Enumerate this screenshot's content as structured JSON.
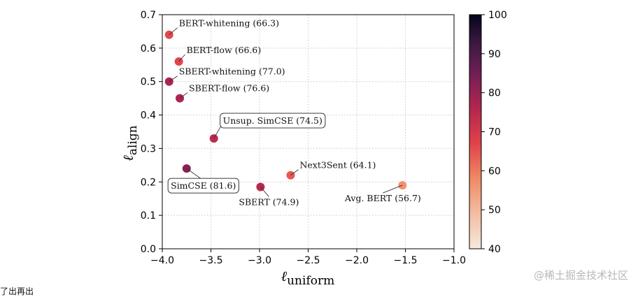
{
  "chart_data": {
    "type": "scatter",
    "xlabel": "ℓ",
    "xlabel_sub": "uniform",
    "ylabel": "ℓ",
    "ylabel_sub": "align",
    "xlim": [
      -4.0,
      -1.0
    ],
    "ylim": [
      0.0,
      0.7
    ],
    "x_ticks": [
      -4.0,
      -3.5,
      -3.0,
      -2.5,
      -2.0,
      -1.5,
      -1.0
    ],
    "x_tick_labels": [
      "−4.0",
      "−3.5",
      "−3.0",
      "−2.5",
      "−2.0",
      "−1.5",
      "−1.0"
    ],
    "y_ticks": [
      0.0,
      0.1,
      0.2,
      0.3,
      0.4,
      0.5,
      0.6,
      0.7
    ],
    "y_tick_labels": [
      "0.0",
      "0.1",
      "0.2",
      "0.3",
      "0.4",
      "0.5",
      "0.6",
      "0.7"
    ],
    "grid": true,
    "colorbar": {
      "min": 40,
      "max": 100,
      "ticks": [
        40,
        50,
        60,
        70,
        80,
        90,
        100
      ],
      "tick_labels": [
        "40",
        "50",
        "60",
        "70",
        "80",
        "90",
        "100"
      ],
      "colormap": "rocket_r"
    },
    "points": [
      {
        "label": "BERT-whitening (66.3)",
        "x": -3.93,
        "y": 0.64,
        "value": 66.3,
        "boxed": false
      },
      {
        "label": "BERT-flow (66.6)",
        "x": -3.83,
        "y": 0.56,
        "value": 66.6,
        "boxed": false
      },
      {
        "label": "SBERT-whitening (77.0)",
        "x": -3.93,
        "y": 0.5,
        "value": 77.0,
        "boxed": false
      },
      {
        "label": "SBERT-flow (76.6)",
        "x": -3.82,
        "y": 0.45,
        "value": 76.6,
        "boxed": false
      },
      {
        "label": "Unsup. SimCSE (74.5)",
        "x": -3.47,
        "y": 0.33,
        "value": 74.5,
        "boxed": true
      },
      {
        "label": "SimCSE (81.6)",
        "x": -3.75,
        "y": 0.24,
        "value": 81.6,
        "boxed": true
      },
      {
        "label": "SBERT (74.9)",
        "x": -2.99,
        "y": 0.185,
        "value": 74.9,
        "boxed": false
      },
      {
        "label": "Next3Sent (64.1)",
        "x": -2.68,
        "y": 0.22,
        "value": 64.1,
        "boxed": false
      },
      {
        "label": "Avg. BERT (56.7)",
        "x": -1.53,
        "y": 0.19,
        "value": 56.7,
        "boxed": false
      }
    ]
  },
  "page": {
    "cut_off_text": "了出再出",
    "watermark": "@稀土掘金技术社区"
  }
}
